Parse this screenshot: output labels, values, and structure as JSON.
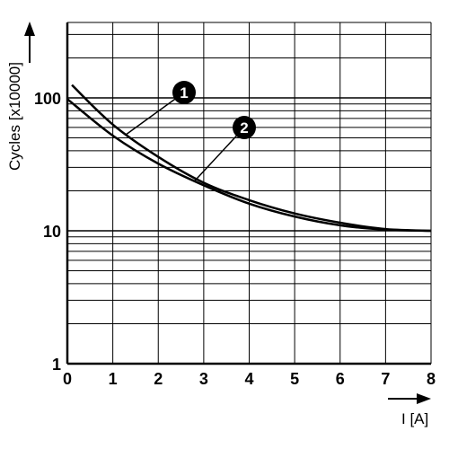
{
  "chart_data": {
    "type": "line",
    "xlabel": "I [A]",
    "ylabel": "Cycles [x10000]",
    "xlim": [
      0,
      8
    ],
    "ylim": [
      1,
      400
    ],
    "yscale": "log",
    "grid": true,
    "x_ticks": [
      "0",
      "1",
      "2",
      "3",
      "4",
      "5",
      "6",
      "7",
      "8"
    ],
    "y_ticks": [
      "1",
      "10",
      "100"
    ],
    "series": [
      {
        "name": "1",
        "x": [
          0.1,
          1,
          2,
          3,
          4,
          5,
          6,
          7,
          8
        ],
        "values": [
          125,
          63,
          36,
          23,
          17,
          13.5,
          11.5,
          10.3,
          10
        ]
      },
      {
        "name": "2",
        "x": [
          0,
          1,
          2,
          3,
          4,
          5,
          6,
          7,
          8
        ],
        "values": [
          98,
          52,
          32,
          22,
          16,
          12.8,
          11,
          10.2,
          10
        ]
      }
    ],
    "annotations": [
      {
        "label": "1",
        "series": "1",
        "at_x": 1.3
      },
      {
        "label": "2",
        "series": "2",
        "at_x": 2.8
      }
    ]
  }
}
